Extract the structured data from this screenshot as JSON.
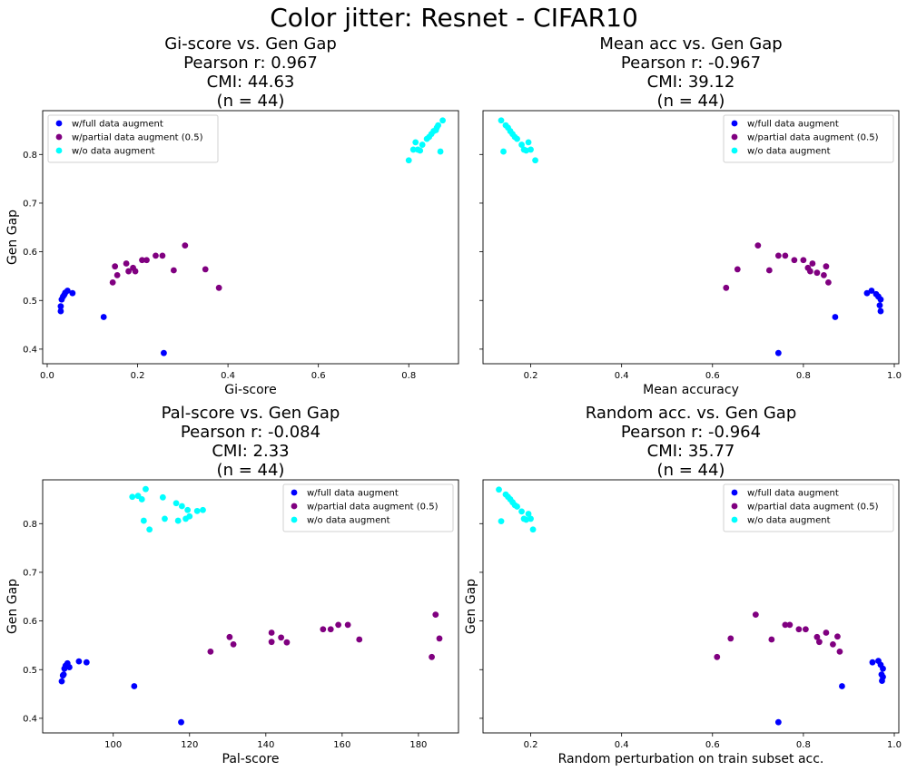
{
  "figure_title": "Color jitter: Resnet - CIFAR10",
  "colors": {
    "full": "#0000ff",
    "partial": "#800080",
    "none": "#00ffff"
  },
  "legend_labels": [
    "w/full data augment",
    "w/partial data augment (0.5)",
    "w/o data augment"
  ],
  "chart_data": [
    {
      "type": "scatter",
      "title_lines": [
        "Gi-score vs. Gen Gap",
        "Pearson r: 0.967",
        "CMI: 44.63",
        "(n = 44)"
      ],
      "xlabel": "Gi-score",
      "ylabel": "Gen Gap",
      "xlim": [
        -0.01,
        0.91
      ],
      "ylim": [
        0.37,
        0.89
      ],
      "xticks": [
        0.0,
        0.2,
        0.4,
        0.6,
        0.8
      ],
      "xtick_labels": [
        "0.0",
        "0.2",
        "0.4",
        "0.6",
        "0.8"
      ],
      "yticks": [
        0.4,
        0.5,
        0.6,
        0.7,
        0.8
      ],
      "ytick_labels": [
        "0.4",
        "0.5",
        "0.6",
        "0.7",
        "0.8"
      ],
      "show_ytick_labels": true,
      "legend_position": "upper-left",
      "series": [
        {
          "name": "w/full data augment",
          "color": "#0000ff",
          "points": [
            [
              0.03,
              0.478
            ],
            [
              0.03,
              0.488
            ],
            [
              0.032,
              0.502
            ],
            [
              0.035,
              0.508
            ],
            [
              0.038,
              0.512
            ],
            [
              0.04,
              0.516
            ],
            [
              0.045,
              0.52
            ],
            [
              0.056,
              0.515
            ],
            [
              0.125,
              0.466
            ],
            [
              0.258,
              0.392
            ]
          ]
        },
        {
          "name": "w/partial data augment (0.5)",
          "color": "#800080",
          "points": [
            [
              0.145,
              0.537
            ],
            [
              0.15,
              0.57
            ],
            [
              0.155,
              0.552
            ],
            [
              0.175,
              0.576
            ],
            [
              0.18,
              0.56
            ],
            [
              0.19,
              0.567
            ],
            [
              0.195,
              0.56
            ],
            [
              0.21,
              0.583
            ],
            [
              0.22,
              0.583
            ],
            [
              0.24,
              0.592
            ],
            [
              0.255,
              0.592
            ],
            [
              0.28,
              0.562
            ],
            [
              0.305,
              0.613
            ],
            [
              0.35,
              0.564
            ],
            [
              0.38,
              0.526
            ]
          ]
        },
        {
          "name": "w/o data augment",
          "color": "#00ffff",
          "points": [
            [
              0.8,
              0.788
            ],
            [
              0.81,
              0.81
            ],
            [
              0.815,
              0.825
            ],
            [
              0.82,
              0.81
            ],
            [
              0.825,
              0.808
            ],
            [
              0.83,
              0.82
            ],
            [
              0.84,
              0.832
            ],
            [
              0.845,
              0.836
            ],
            [
              0.85,
              0.842
            ],
            [
              0.855,
              0.848
            ],
            [
              0.86,
              0.85
            ],
            [
              0.862,
              0.855
            ],
            [
              0.87,
              0.806
            ],
            [
              0.875,
              0.87
            ],
            [
              0.865,
              0.86
            ]
          ]
        }
      ]
    },
    {
      "type": "scatter",
      "title_lines": [
        "Mean acc vs. Gen Gap",
        "Pearson r: -0.967",
        "CMI: 39.12",
        "(n = 44)"
      ],
      "xlabel": "Mean accuracy",
      "ylabel": "",
      "xlim": [
        0.095,
        1.01
      ],
      "ylim": [
        0.37,
        0.89
      ],
      "xticks": [
        0.2,
        0.4,
        0.6,
        0.8,
        1.0
      ],
      "xtick_labels": [
        "0.2",
        "0.4",
        "0.6",
        "0.8",
        "1.0"
      ],
      "yticks": [
        0.4,
        0.5,
        0.6,
        0.7,
        0.8
      ],
      "ytick_labels": [],
      "show_ytick_labels": false,
      "legend_position": "upper-right",
      "series": [
        {
          "name": "w/full data augment",
          "color": "#0000ff",
          "points": [
            [
              0.94,
              0.515
            ],
            [
              0.95,
              0.52
            ],
            [
              0.96,
              0.513
            ],
            [
              0.965,
              0.508
            ],
            [
              0.97,
              0.502
            ],
            [
              0.968,
              0.49
            ],
            [
              0.97,
              0.478
            ],
            [
              0.87,
              0.466
            ],
            [
              0.745,
              0.392
            ]
          ]
        },
        {
          "name": "w/partial data augment (0.5)",
          "color": "#800080",
          "points": [
            [
              0.63,
              0.526
            ],
            [
              0.655,
              0.564
            ],
            [
              0.7,
              0.613
            ],
            [
              0.725,
              0.562
            ],
            [
              0.745,
              0.592
            ],
            [
              0.76,
              0.592
            ],
            [
              0.78,
              0.583
            ],
            [
              0.8,
              0.583
            ],
            [
              0.81,
              0.567
            ],
            [
              0.815,
              0.56
            ],
            [
              0.82,
              0.576
            ],
            [
              0.83,
              0.557
            ],
            [
              0.845,
              0.552
            ],
            [
              0.85,
              0.57
            ],
            [
              0.855,
              0.537
            ]
          ]
        },
        {
          "name": "w/o data augment",
          "color": "#00ffff",
          "points": [
            [
              0.135,
              0.87
            ],
            [
              0.14,
              0.806
            ],
            [
              0.145,
              0.86
            ],
            [
              0.15,
              0.855
            ],
            [
              0.155,
              0.848
            ],
            [
              0.16,
              0.842
            ],
            [
              0.165,
              0.836
            ],
            [
              0.17,
              0.832
            ],
            [
              0.18,
              0.82
            ],
            [
              0.185,
              0.81
            ],
            [
              0.19,
              0.808
            ],
            [
              0.195,
              0.825
            ],
            [
              0.2,
              0.81
            ],
            [
              0.21,
              0.788
            ]
          ]
        }
      ]
    },
    {
      "type": "scatter",
      "title_lines": [
        "Pal-score vs. Gen Gap",
        "Pearson r: -0.084",
        "CMI: 2.33",
        "(n = 44)"
      ],
      "xlabel": "Pal-score",
      "ylabel": "Gen Gap",
      "xlim": [
        81.5,
        190.5
      ],
      "ylim": [
        0.37,
        0.89
      ],
      "xticks": [
        100,
        120,
        140,
        160,
        180
      ],
      "xtick_labels": [
        "100",
        "120",
        "140",
        "160",
        "180"
      ],
      "yticks": [
        0.4,
        0.5,
        0.6,
        0.7,
        0.8
      ],
      "ytick_labels": [
        "0.4",
        "0.5",
        "0.6",
        "0.7",
        "0.8"
      ],
      "show_ytick_labels": true,
      "legend_position": "upper-right",
      "series": [
        {
          "name": "w/full data augment",
          "color": "#0000ff",
          "points": [
            [
              86.5,
              0.476
            ],
            [
              86.8,
              0.488
            ],
            [
              87.0,
              0.49
            ],
            [
              87.2,
              0.502
            ],
            [
              87.5,
              0.508
            ],
            [
              88.0,
              0.513
            ],
            [
              88.5,
              0.505
            ],
            [
              91.0,
              0.517
            ],
            [
              93.0,
              0.515
            ],
            [
              105.5,
              0.466
            ],
            [
              117.8,
              0.392
            ]
          ]
        },
        {
          "name": "w/partial data augment (0.5)",
          "color": "#800080",
          "points": [
            [
              125.5,
              0.537
            ],
            [
              130.5,
              0.567
            ],
            [
              131.5,
              0.552
            ],
            [
              141.5,
              0.576
            ],
            [
              141.5,
              0.557
            ],
            [
              144,
              0.566
            ],
            [
              145.5,
              0.556
            ],
            [
              155,
              0.583
            ],
            [
              157,
              0.583
            ],
            [
              159,
              0.592
            ],
            [
              161.5,
              0.592
            ],
            [
              164.5,
              0.562
            ],
            [
              183.5,
              0.526
            ],
            [
              184.5,
              0.613
            ],
            [
              185.5,
              0.564
            ]
          ]
        },
        {
          "name": "w/o data augment",
          "color": "#00ffff",
          "points": [
            [
              105,
              0.855
            ],
            [
              106.5,
              0.857
            ],
            [
              107.5,
              0.85
            ],
            [
              108,
              0.806
            ],
            [
              108.5,
              0.871
            ],
            [
              109.5,
              0.788
            ],
            [
              113,
              0.854
            ],
            [
              113.5,
              0.81
            ],
            [
              116.5,
              0.842
            ],
            [
              117,
              0.806
            ],
            [
              118,
              0.836
            ],
            [
              119,
              0.81
            ],
            [
              119.5,
              0.828
            ],
            [
              120,
              0.815
            ],
            [
              122,
              0.826
            ],
            [
              123.5,
              0.828
            ]
          ]
        }
      ]
    },
    {
      "type": "scatter",
      "title_lines": [
        "Random acc. vs. Gen Gap",
        "Pearson r: -0.964",
        "CMI: 35.77",
        "(n = 44)"
      ],
      "xlabel": "Random perturbation on train subset acc.",
      "ylabel": "Gen Gap",
      "xlim": [
        0.095,
        1.01
      ],
      "ylim": [
        0.37,
        0.89
      ],
      "xticks": [
        0.2,
        0.4,
        0.6,
        0.8,
        1.0
      ],
      "xtick_labels": [
        "0.2",
        "0.4",
        "0.6",
        "0.8",
        "1.0"
      ],
      "yticks": [
        0.4,
        0.5,
        0.6,
        0.7,
        0.8
      ],
      "ytick_labels": [],
      "show_ytick_labels": false,
      "legend_position": "upper-right",
      "series": [
        {
          "name": "w/full data augment",
          "color": "#0000ff",
          "points": [
            [
              0.952,
              0.515
            ],
            [
              0.965,
              0.518
            ],
            [
              0.97,
              0.51
            ],
            [
              0.975,
              0.502
            ],
            [
              0.972,
              0.49
            ],
            [
              0.975,
              0.485
            ],
            [
              0.973,
              0.477
            ],
            [
              0.885,
              0.466
            ],
            [
              0.745,
              0.392
            ]
          ]
        },
        {
          "name": "w/partial data augment (0.5)",
          "color": "#800080",
          "points": [
            [
              0.61,
              0.526
            ],
            [
              0.64,
              0.564
            ],
            [
              0.695,
              0.613
            ],
            [
              0.73,
              0.562
            ],
            [
              0.76,
              0.592
            ],
            [
              0.77,
              0.592
            ],
            [
              0.79,
              0.583
            ],
            [
              0.805,
              0.583
            ],
            [
              0.83,
              0.567
            ],
            [
              0.835,
              0.557
            ],
            [
              0.85,
              0.576
            ],
            [
              0.865,
              0.552
            ],
            [
              0.875,
              0.568
            ],
            [
              0.88,
              0.537
            ]
          ]
        },
        {
          "name": "w/o data augment",
          "color": "#00ffff",
          "points": [
            [
              0.13,
              0.87
            ],
            [
              0.135,
              0.805
            ],
            [
              0.145,
              0.86
            ],
            [
              0.15,
              0.855
            ],
            [
              0.155,
              0.85
            ],
            [
              0.16,
              0.844
            ],
            [
              0.165,
              0.838
            ],
            [
              0.17,
              0.835
            ],
            [
              0.18,
              0.825
            ],
            [
              0.185,
              0.81
            ],
            [
              0.19,
              0.808
            ],
            [
              0.195,
              0.82
            ],
            [
              0.2,
              0.81
            ],
            [
              0.205,
              0.788
            ]
          ]
        }
      ]
    }
  ]
}
